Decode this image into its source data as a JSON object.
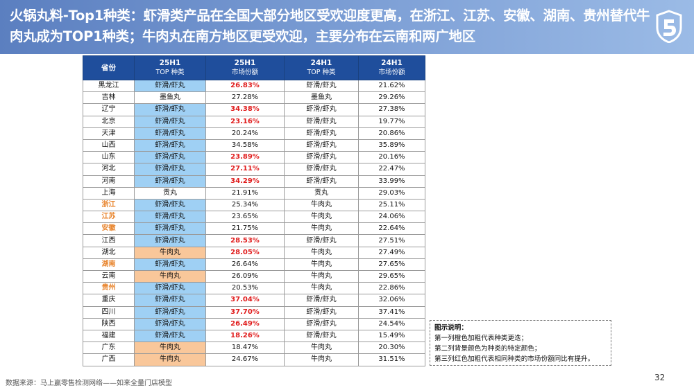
{
  "title": "火锅丸料-Top1种类：虾滑类产品在全国大部分地区受欢迎度更高，在浙江、江苏、安徽、湖南、贵州替代牛肉丸成为TOP1种类；牛肉丸在南方地区更受欢迎，主要分布在云南和两广地区",
  "colors": {
    "header_bg": "#6f93cf",
    "table_header_bg": "#1f4e9c",
    "shrimp_fill": "#9fd0f4",
    "beef_fill": "#f9c79a",
    "highlight_province": "#e8842c",
    "red_share": "#e01c1c"
  },
  "table": {
    "headers": [
      {
        "line1": "省份",
        "line2": ""
      },
      {
        "line1": "25H1",
        "line2": "TOP 种类"
      },
      {
        "line1": "25H1",
        "line2": "市场份额"
      },
      {
        "line1": "24H1",
        "line2": "TOP 种类"
      },
      {
        "line1": "24H1",
        "line2": "市场份额"
      }
    ],
    "rows": [
      {
        "province": "黑龙江",
        "top25": "虾滑/虾丸",
        "share25": "26.83%",
        "top24": "虾滑/虾丸",
        "share24": "21.62%",
        "fill": "shrimp",
        "red": true,
        "hl": false
      },
      {
        "province": "吉林",
        "top25": "墨鱼丸",
        "share25": "27.28%",
        "top24": "墨鱼丸",
        "share24": "29.26%",
        "fill": "none",
        "red": false,
        "hl": false
      },
      {
        "province": "辽宁",
        "top25": "虾滑/虾丸",
        "share25": "34.38%",
        "top24": "虾滑/虾丸",
        "share24": "27.38%",
        "fill": "shrimp",
        "red": true,
        "hl": false
      },
      {
        "province": "北京",
        "top25": "虾滑/虾丸",
        "share25": "23.16%",
        "top24": "虾滑/虾丸",
        "share24": "19.77%",
        "fill": "shrimp",
        "red": true,
        "hl": false
      },
      {
        "province": "天津",
        "top25": "虾滑/虾丸",
        "share25": "20.24%",
        "top24": "虾滑/虾丸",
        "share24": "20.86%",
        "fill": "shrimp",
        "red": false,
        "hl": false
      },
      {
        "province": "山西",
        "top25": "虾滑/虾丸",
        "share25": "34.58%",
        "top24": "虾滑/虾丸",
        "share24": "35.89%",
        "fill": "shrimp",
        "red": false,
        "hl": false
      },
      {
        "province": "山东",
        "top25": "虾滑/虾丸",
        "share25": "23.89%",
        "top24": "虾滑/虾丸",
        "share24": "20.16%",
        "fill": "shrimp",
        "red": true,
        "hl": false
      },
      {
        "province": "河北",
        "top25": "虾滑/虾丸",
        "share25": "27.11%",
        "top24": "虾滑/虾丸",
        "share24": "22.47%",
        "fill": "shrimp",
        "red": true,
        "hl": false
      },
      {
        "province": "河南",
        "top25": "虾滑/虾丸",
        "share25": "34.29%",
        "top24": "虾滑/虾丸",
        "share24": "33.99%",
        "fill": "shrimp",
        "red": true,
        "hl": false
      },
      {
        "province": "上海",
        "top25": "贡丸",
        "share25": "21.91%",
        "top24": "贡丸",
        "share24": "29.03%",
        "fill": "none",
        "red": false,
        "hl": false
      },
      {
        "province": "浙江",
        "top25": "虾滑/虾丸",
        "share25": "25.34%",
        "top24": "牛肉丸",
        "share24": "25.11%",
        "fill": "shrimp",
        "red": false,
        "hl": true
      },
      {
        "province": "江苏",
        "top25": "虾滑/虾丸",
        "share25": "23.65%",
        "top24": "牛肉丸",
        "share24": "24.06%",
        "fill": "shrimp",
        "red": false,
        "hl": true
      },
      {
        "province": "安徽",
        "top25": "虾滑/虾丸",
        "share25": "21.75%",
        "top24": "牛肉丸",
        "share24": "22.64%",
        "fill": "shrimp",
        "red": false,
        "hl": true
      },
      {
        "province": "江西",
        "top25": "虾滑/虾丸",
        "share25": "28.53%",
        "top24": "虾滑/虾丸",
        "share24": "27.51%",
        "fill": "shrimp",
        "red": true,
        "hl": false
      },
      {
        "province": "湖北",
        "top25": "牛肉丸",
        "share25": "28.05%",
        "top24": "牛肉丸",
        "share24": "27.49%",
        "fill": "beef",
        "red": true,
        "hl": false
      },
      {
        "province": "湖南",
        "top25": "虾滑/虾丸",
        "share25": "26.64%",
        "top24": "牛肉丸",
        "share24": "27.65%",
        "fill": "shrimp",
        "red": false,
        "hl": true
      },
      {
        "province": "云南",
        "top25": "牛肉丸",
        "share25": "26.09%",
        "top24": "牛肉丸",
        "share24": "29.65%",
        "fill": "beef",
        "red": false,
        "hl": false
      },
      {
        "province": "贵州",
        "top25": "虾滑/虾丸",
        "share25": "20.53%",
        "top24": "牛肉丸",
        "share24": "22.86%",
        "fill": "shrimp",
        "red": false,
        "hl": true
      },
      {
        "province": "重庆",
        "top25": "虾滑/虾丸",
        "share25": "37.04%",
        "top24": "虾滑/虾丸",
        "share24": "32.06%",
        "fill": "shrimp",
        "red": true,
        "hl": false
      },
      {
        "province": "四川",
        "top25": "虾滑/虾丸",
        "share25": "37.70%",
        "top24": "虾滑/虾丸",
        "share24": "37.41%",
        "fill": "shrimp",
        "red": true,
        "hl": false
      },
      {
        "province": "陕西",
        "top25": "虾滑/虾丸",
        "share25": "26.49%",
        "top24": "虾滑/虾丸",
        "share24": "24.54%",
        "fill": "shrimp",
        "red": true,
        "hl": false
      },
      {
        "province": "福建",
        "top25": "虾滑/虾丸",
        "share25": "18.26%",
        "top24": "虾滑/虾丸",
        "share24": "15.49%",
        "fill": "shrimp",
        "red": true,
        "hl": false
      },
      {
        "province": "广东",
        "top25": "牛肉丸",
        "share25": "18.47%",
        "top24": "牛肉丸",
        "share24": "20.30%",
        "fill": "beef",
        "red": false,
        "hl": false
      },
      {
        "province": "广西",
        "top25": "牛肉丸",
        "share25": "24.67%",
        "top24": "牛肉丸",
        "share24": "31.51%",
        "fill": "beef",
        "red": false,
        "hl": false
      }
    ]
  },
  "legend": {
    "title": "图示说明：",
    "lines": [
      "第一列橙色加粗代表种类更迭；",
      "第二列背景颜色为种类的特定颜色；",
      "第三列红色加粗代表相同种类的市场份额同比有提升。"
    ]
  },
  "source": "数据来源：马上赢零售检测网络——如来全量门店模型",
  "page_number": "32",
  "logo_icon": "shield-logo-icon"
}
